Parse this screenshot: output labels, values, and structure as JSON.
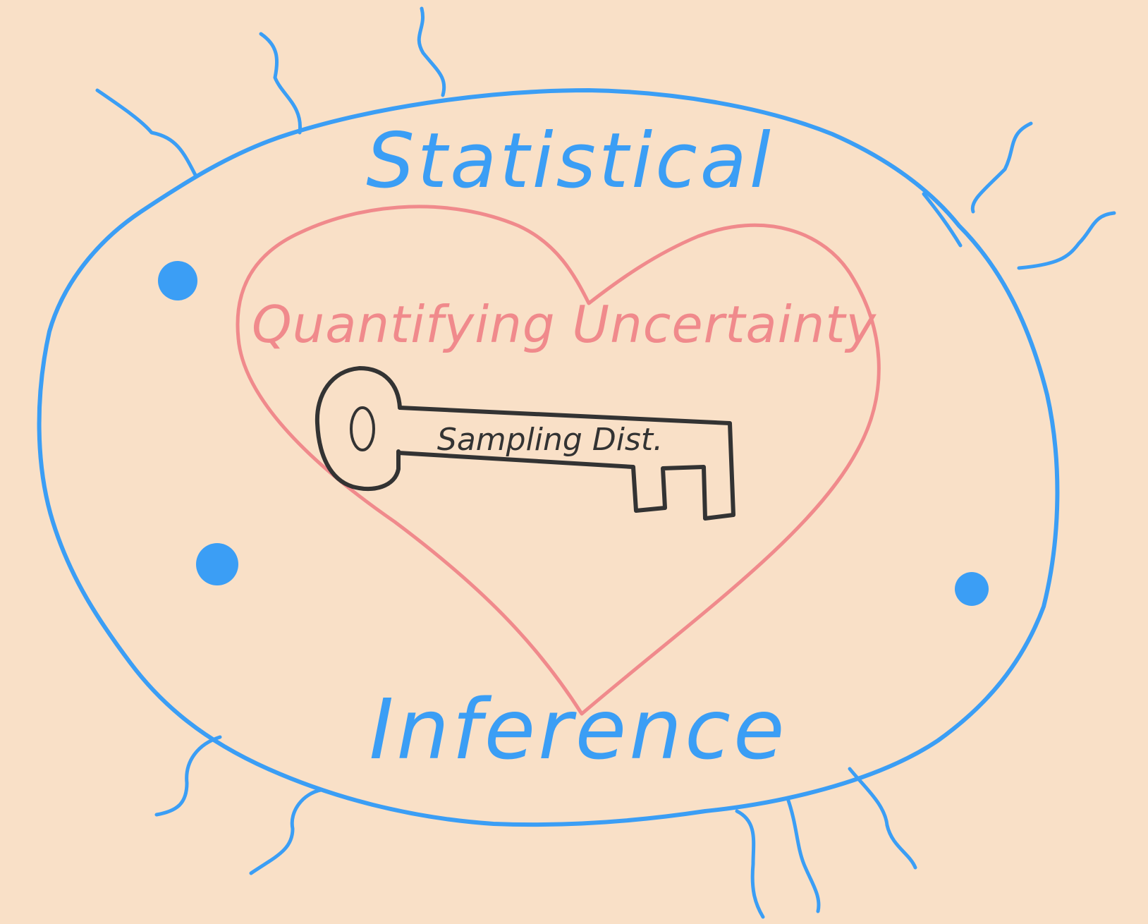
{
  "colors": {
    "background": "#f9e0c7",
    "blob": "#3b9ef5",
    "heart": "#f08a8c",
    "key": "#333333"
  },
  "labels": {
    "top_word": "Statistical",
    "bottom_word": "Inference",
    "heart_text": "Quantifying Uncertainty",
    "key_text": "Sampling Dist."
  }
}
